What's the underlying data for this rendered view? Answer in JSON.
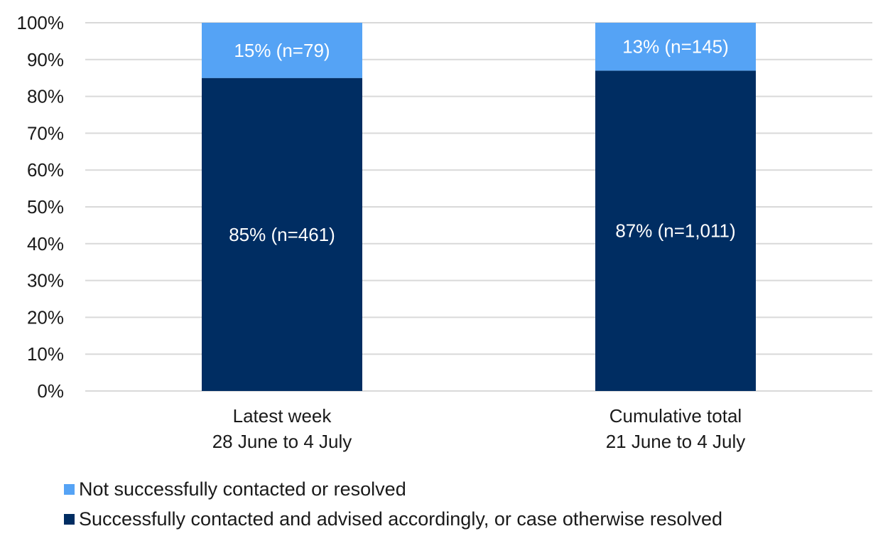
{
  "chart_data": {
    "type": "bar",
    "stacked": true,
    "title": "",
    "xlabel": "",
    "ylabel": "",
    "ylim": [
      0,
      100
    ],
    "y_tick_labels": [
      "0%",
      "10%",
      "20%",
      "30%",
      "40%",
      "50%",
      "60%",
      "70%",
      "80%",
      "90%",
      "100%"
    ],
    "grid": true,
    "legend_position": "bottom",
    "categories": [
      [
        "Latest week",
        "28 June to 4 July"
      ],
      [
        "Cumulative total",
        "21 June to 4 July"
      ]
    ],
    "series": [
      {
        "name": "Successfully contacted and advised accordingly, or case otherwise resolved",
        "color": "#002d62",
        "values": [
          85,
          87
        ],
        "labels": [
          "85% (n=461)",
          "87% (n=1,011)"
        ]
      },
      {
        "name": "Not successfully contacted or resolved",
        "color": "#55a3f5",
        "values": [
          15,
          13
        ],
        "labels": [
          "15% (n=79)",
          "13% (n=145)"
        ]
      }
    ],
    "legend_order": [
      1,
      0
    ]
  }
}
